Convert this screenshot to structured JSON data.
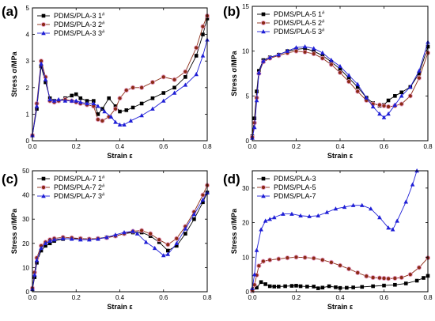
{
  "chart_data": [
    {
      "panel": "(a)",
      "type": "line",
      "xlabel": "Strain ε",
      "ylabel": "Stress σ/MPa",
      "xlim": [
        0,
        0.8
      ],
      "ylim": [
        0,
        5
      ],
      "xticks": [
        "0.0",
        "0.2",
        "0.4",
        "0.6",
        "0.8"
      ],
      "yticks": [
        "0",
        "1",
        "2",
        "3",
        "4",
        "5"
      ],
      "legend_position": "top-left",
      "series": [
        {
          "name": "PDMS/PLA-3",
          "superscript": "1#",
          "marker": "square",
          "color": "#000000",
          "x": [
            0.0,
            0.02,
            0.04,
            0.06,
            0.08,
            0.1,
            0.12,
            0.15,
            0.18,
            0.2,
            0.22,
            0.25,
            0.28,
            0.3,
            0.32,
            0.35,
            0.38,
            0.4,
            0.43,
            0.46,
            0.5,
            0.55,
            0.6,
            0.65,
            0.7,
            0.75,
            0.78,
            0.8
          ],
          "y": [
            0.2,
            1.2,
            2.8,
            2.2,
            1.6,
            1.5,
            1.5,
            1.6,
            1.7,
            1.75,
            1.6,
            1.5,
            1.5,
            1.0,
            1.2,
            1.6,
            1.3,
            1.1,
            1.15,
            1.25,
            1.4,
            1.6,
            1.8,
            2.0,
            2.4,
            3.2,
            4.0,
            4.6
          ]
        },
        {
          "name": "PDMS/PLA-3",
          "superscript": "2#",
          "marker": "circle",
          "color": "#8b2a14",
          "x": [
            0.0,
            0.02,
            0.04,
            0.06,
            0.08,
            0.1,
            0.12,
            0.15,
            0.18,
            0.2,
            0.22,
            0.25,
            0.28,
            0.3,
            0.32,
            0.35,
            0.38,
            0.4,
            0.43,
            0.46,
            0.5,
            0.55,
            0.6,
            0.65,
            0.7,
            0.75,
            0.78,
            0.8
          ],
          "y": [
            0.2,
            1.4,
            3.0,
            2.4,
            1.5,
            1.45,
            1.5,
            1.55,
            1.5,
            1.45,
            1.4,
            1.35,
            1.3,
            0.8,
            0.75,
            0.9,
            1.2,
            1.6,
            1.9,
            2.0,
            2.0,
            2.2,
            2.4,
            2.3,
            2.6,
            3.5,
            4.3,
            4.7
          ]
        },
        {
          "name": "PDMS/PLA-3",
          "superscript": "3#",
          "marker": "triangle",
          "color": "#1f1fd6",
          "x": [
            0.0,
            0.02,
            0.04,
            0.06,
            0.08,
            0.1,
            0.12,
            0.15,
            0.18,
            0.2,
            0.22,
            0.25,
            0.28,
            0.3,
            0.33,
            0.36,
            0.38,
            0.4,
            0.42,
            0.45,
            0.5,
            0.55,
            0.6,
            0.65,
            0.7,
            0.75,
            0.78,
            0.8
          ],
          "y": [
            0.2,
            1.3,
            2.9,
            2.3,
            1.55,
            1.5,
            1.55,
            1.5,
            1.5,
            1.5,
            1.45,
            1.4,
            1.4,
            1.3,
            1.1,
            0.9,
            0.7,
            0.6,
            0.6,
            0.75,
            0.95,
            1.2,
            1.5,
            1.8,
            2.1,
            2.5,
            3.2,
            3.8
          ]
        }
      ]
    },
    {
      "panel": "(b)",
      "type": "line",
      "xlabel": "Strain ε",
      "ylabel": "Stress σ/MPa",
      "xlim": [
        0,
        0.8
      ],
      "ylim": [
        0,
        15
      ],
      "xticks": [
        "0.0",
        "0.2",
        "0.4",
        "0.6",
        "0.8"
      ],
      "yticks": [
        "0",
        "5",
        "10",
        "15"
      ],
      "legend_position": "top-left",
      "series": [
        {
          "name": "PDMS/PLA-5",
          "superscript": "1#",
          "marker": "square",
          "color": "#000000",
          "x": [
            0.0,
            0.01,
            0.02,
            0.03,
            0.05,
            0.08,
            0.12,
            0.16,
            0.2,
            0.24,
            0.28,
            0.32,
            0.36,
            0.4,
            0.44,
            0.48,
            0.52,
            0.55,
            0.58,
            0.6,
            0.62,
            0.65,
            0.68,
            0.72,
            0.76,
            0.8
          ],
          "y": [
            0.5,
            2.5,
            5.5,
            7.8,
            9.0,
            9.3,
            9.6,
            10.0,
            10.2,
            10.3,
            10.0,
            9.5,
            8.8,
            8.0,
            7.0,
            6.0,
            4.8,
            4.2,
            3.9,
            4.0,
            4.5,
            5.0,
            5.4,
            6.0,
            7.5,
            10.5
          ]
        },
        {
          "name": "PDMS/PLA-5",
          "superscript": "2#",
          "marker": "circle",
          "color": "#8b2a14",
          "x": [
            0.0,
            0.01,
            0.02,
            0.03,
            0.05,
            0.08,
            0.12,
            0.16,
            0.2,
            0.24,
            0.28,
            0.32,
            0.36,
            0.4,
            0.44,
            0.48,
            0.52,
            0.55,
            0.58,
            0.6,
            0.62,
            0.65,
            0.68,
            0.72,
            0.76,
            0.8
          ],
          "y": [
            0.4,
            2.0,
            4.8,
            7.5,
            8.8,
            9.2,
            9.5,
            9.8,
            10.0,
            9.9,
            9.7,
            9.2,
            8.5,
            7.6,
            6.6,
            5.5,
            4.5,
            4.1,
            4.0,
            3.9,
            3.8,
            3.9,
            4.1,
            5.0,
            7.0,
            9.8
          ]
        },
        {
          "name": "PDMS/PLA-5",
          "superscript": "3#",
          "marker": "triangle",
          "color": "#1f1fd6",
          "x": [
            0.0,
            0.01,
            0.02,
            0.03,
            0.05,
            0.08,
            0.12,
            0.16,
            0.2,
            0.24,
            0.28,
            0.32,
            0.36,
            0.4,
            0.44,
            0.48,
            0.52,
            0.55,
            0.58,
            0.6,
            0.62,
            0.65,
            0.68,
            0.72,
            0.76,
            0.8
          ],
          "y": [
            0.3,
            1.5,
            4.5,
            7.6,
            8.9,
            9.3,
            9.6,
            10.0,
            10.4,
            10.5,
            10.3,
            9.8,
            9.0,
            8.3,
            7.3,
            6.3,
            4.8,
            3.8,
            3.0,
            2.6,
            3.0,
            4.0,
            5.0,
            6.0,
            7.8,
            11.0
          ]
        }
      ]
    },
    {
      "panel": "(c)",
      "type": "line",
      "xlabel": "Strain ε",
      "ylabel": "Stress σ/MPa",
      "xlim": [
        0,
        0.8
      ],
      "ylim": [
        0,
        50
      ],
      "xticks": [
        "0.0",
        "0.2",
        "0.4",
        "0.6",
        "0.8"
      ],
      "yticks": [
        "0",
        "10",
        "20",
        "30",
        "40",
        "50"
      ],
      "legend_position": "top-left",
      "series": [
        {
          "name": "PDMS/PLA-7",
          "superscript": "1#",
          "marker": "square",
          "color": "#000000",
          "x": [
            0.0,
            0.01,
            0.02,
            0.04,
            0.06,
            0.08,
            0.1,
            0.14,
            0.18,
            0.22,
            0.26,
            0.3,
            0.34,
            0.38,
            0.42,
            0.46,
            0.5,
            0.54,
            0.58,
            0.62,
            0.66,
            0.7,
            0.74,
            0.78,
            0.8
          ],
          "y": [
            1.0,
            6.0,
            12.0,
            17.0,
            19.0,
            20.0,
            21.0,
            21.8,
            22.0,
            22.0,
            21.8,
            22.0,
            22.5,
            23.0,
            24.0,
            24.5,
            24.5,
            23.0,
            20.5,
            17.0,
            19.0,
            24.0,
            30.0,
            37.0,
            41.0
          ]
        },
        {
          "name": "PDMS/PLA-7",
          "superscript": "2#",
          "marker": "circle",
          "color": "#8b2a14",
          "x": [
            0.0,
            0.01,
            0.02,
            0.04,
            0.06,
            0.08,
            0.1,
            0.14,
            0.18,
            0.22,
            0.26,
            0.3,
            0.34,
            0.38,
            0.42,
            0.46,
            0.5,
            0.54,
            0.58,
            0.62,
            0.66,
            0.7,
            0.74,
            0.78,
            0.8
          ],
          "y": [
            1.5,
            8.0,
            14.0,
            19.0,
            20.5,
            21.5,
            22.0,
            22.5,
            22.3,
            22.0,
            21.8,
            22.0,
            22.3,
            23.0,
            24.0,
            25.0,
            25.3,
            24.0,
            21.5,
            19.5,
            22.0,
            27.0,
            33.0,
            40.0,
            44.0
          ]
        },
        {
          "name": "PDMS/PLA-7",
          "superscript": "3#",
          "marker": "triangle",
          "color": "#1f1fd6",
          "x": [
            0.0,
            0.01,
            0.02,
            0.04,
            0.06,
            0.08,
            0.1,
            0.14,
            0.18,
            0.22,
            0.26,
            0.3,
            0.34,
            0.38,
            0.42,
            0.46,
            0.48,
            0.52,
            0.56,
            0.6,
            0.62,
            0.66,
            0.7,
            0.74,
            0.78,
            0.8
          ],
          "y": [
            1.2,
            7.0,
            13.0,
            18.0,
            20.0,
            21.0,
            21.5,
            22.0,
            21.8,
            21.5,
            21.5,
            21.8,
            22.5,
            23.5,
            24.5,
            25.0,
            24.0,
            20.5,
            18.0,
            15.0,
            15.5,
            20.0,
            26.0,
            32.0,
            38.0,
            41.0
          ]
        }
      ]
    },
    {
      "panel": "(d)",
      "type": "line",
      "xlabel": "Strain ε",
      "ylabel": "Stress σ/MPa",
      "xlim": [
        0,
        0.8
      ],
      "ylim": [
        0,
        35
      ],
      "xticks": [
        "0.0",
        "0.2",
        "0.4",
        "0.6",
        "0.8"
      ],
      "yticks": [
        "0",
        "10",
        "20",
        "30"
      ],
      "legend_position": "top-left",
      "series": [
        {
          "name": "PDMS/PLA-3",
          "superscript": "",
          "marker": "square",
          "color": "#000000",
          "x": [
            0.0,
            0.02,
            0.04,
            0.06,
            0.08,
            0.1,
            0.12,
            0.15,
            0.18,
            0.2,
            0.22,
            0.25,
            0.28,
            0.3,
            0.32,
            0.35,
            0.38,
            0.4,
            0.43,
            0.46,
            0.5,
            0.55,
            0.6,
            0.65,
            0.7,
            0.75,
            0.78,
            0.8
          ],
          "y": [
            0.2,
            1.2,
            2.8,
            2.2,
            1.6,
            1.5,
            1.5,
            1.6,
            1.7,
            1.75,
            1.6,
            1.5,
            1.5,
            1.0,
            1.2,
            1.6,
            1.3,
            1.1,
            1.15,
            1.25,
            1.4,
            1.6,
            1.8,
            2.0,
            2.4,
            3.2,
            4.0,
            4.6
          ]
        },
        {
          "name": "PDMS/PLA-5",
          "superscript": "",
          "marker": "circle",
          "color": "#8b2a14",
          "x": [
            0.0,
            0.01,
            0.02,
            0.03,
            0.05,
            0.08,
            0.12,
            0.16,
            0.2,
            0.24,
            0.28,
            0.32,
            0.36,
            0.4,
            0.44,
            0.48,
            0.52,
            0.55,
            0.58,
            0.6,
            0.62,
            0.65,
            0.68,
            0.72,
            0.76,
            0.8
          ],
          "y": [
            0.4,
            2.0,
            4.8,
            7.5,
            8.8,
            9.2,
            9.5,
            9.8,
            10.0,
            9.9,
            9.7,
            9.2,
            8.5,
            7.6,
            6.6,
            5.5,
            4.5,
            4.1,
            4.0,
            3.9,
            3.8,
            3.9,
            4.1,
            5.0,
            7.0,
            9.8
          ]
        },
        {
          "name": "PDMS/PLA-7",
          "superscript": "",
          "marker": "triangle",
          "color": "#1f1fd6",
          "x": [
            0.0,
            0.01,
            0.02,
            0.04,
            0.06,
            0.08,
            0.1,
            0.14,
            0.18,
            0.22,
            0.26,
            0.3,
            0.34,
            0.38,
            0.42,
            0.46,
            0.5,
            0.54,
            0.58,
            0.62,
            0.64,
            0.66,
            0.7,
            0.73,
            0.75
          ],
          "y": [
            1.0,
            5.0,
            12.0,
            18.0,
            20.5,
            21.0,
            21.5,
            22.5,
            22.5,
            22.0,
            21.8,
            22.0,
            23.0,
            24.0,
            24.5,
            25.0,
            25.0,
            24.0,
            21.5,
            18.5,
            18.0,
            20.5,
            26.0,
            31.0,
            35.0
          ]
        }
      ]
    }
  ]
}
